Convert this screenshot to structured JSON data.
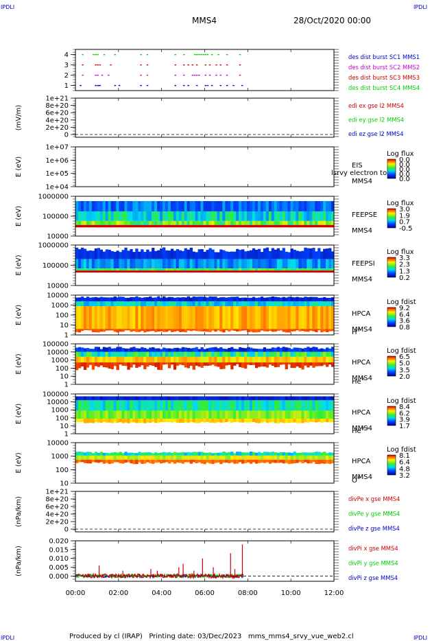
{
  "header": {
    "corner_left_top": "IPDLI",
    "corner_right_top": "IPDLI",
    "corner_left_bottom": "IPDLI",
    "corner_right_bottom": "IPDLI",
    "title": "MMS4",
    "date": "28/Oct/2020 00:00"
  },
  "footer": {
    "text": "Produced by cl (IRAP)   Printing date: 03/Dec/2023   mms_mms4_srvy_vue_web2.cl"
  },
  "colors": {
    "blue": "#0000cc",
    "magenta": "#cc00cc",
    "red": "#cc0000",
    "green": "#00cc00"
  },
  "x_axis": {
    "range_hours": [
      0,
      12
    ],
    "tick_labels": [
      "00:00",
      "02:00",
      "04:00",
      "06:00",
      "08:00",
      "10:00",
      "12:00"
    ]
  },
  "chart_data": [
    {
      "id": "dist",
      "type": "scatter",
      "ylabel": "",
      "ylim": [
        0.5,
        4.5
      ],
      "yticks": [
        "1",
        "2",
        "3",
        "4"
      ],
      "series": [
        {
          "name": "des dist burst SC1 MMS1",
          "color": "#0000cc",
          "y": 1,
          "x": [
            0.2,
            0.9,
            1.0,
            1.05,
            1.1,
            1.8,
            2.0,
            3.0,
            3.3,
            4.6,
            5.0,
            5.2,
            5.6,
            6.0,
            6.1,
            6.3,
            6.7,
            7.0,
            7.3,
            7.7
          ]
        },
        {
          "name": "des dist burst SC2 MMS2",
          "color": "#cc00cc",
          "y": 2,
          "x": [
            0.3,
            0.9,
            1.0,
            1.2,
            1.5,
            3.0,
            3.3,
            4.6,
            5.0,
            5.4,
            5.5,
            5.6,
            5.7,
            6.0,
            6.2,
            6.5,
            6.7,
            7.0,
            7.6
          ]
        },
        {
          "name": "des dist burst SC3 MMS3",
          "color": "#cc0000",
          "y": 3,
          "x": [
            0.3,
            0.9,
            1.0,
            1.1,
            1.6,
            3.0,
            3.3,
            4.6,
            5.0,
            5.2,
            5.4,
            5.6,
            6.0,
            6.2,
            6.5,
            6.7,
            7.0,
            7.6
          ]
        },
        {
          "name": "des dist burst SC4 MMS4",
          "color": "#00cc00",
          "y": 4,
          "x": [
            0.3,
            0.8,
            0.9,
            1.0,
            1.3,
            1.8,
            3.0,
            3.3,
            4.6,
            5.0,
            5.5,
            5.6,
            5.7,
            5.8,
            5.9,
            6.0,
            6.1,
            6.3,
            6.6,
            7.0,
            7.6
          ]
        }
      ]
    },
    {
      "id": "edi",
      "type": "line",
      "ylabel": "(mV/m)",
      "yticks": [
        "1e+21",
        "8e+20",
        "6e+20",
        "4e+20",
        "2e+20",
        "0"
      ],
      "series": [
        {
          "name": "edi ex gse l2 MMS4",
          "color": "#cc0000"
        },
        {
          "name": "edi ey gse l2 MMS4",
          "color": "#00cc00"
        },
        {
          "name": "edi ez gse l2 MMS4",
          "color": "#0000cc"
        }
      ]
    },
    {
      "id": "eis",
      "type": "heatmap",
      "ylabel": "E (eV)",
      "yticks": [
        "1e+07",
        "1e+06",
        "1e+05",
        "1e+04"
      ],
      "labels": [
        "EIS",
        "MMS4"
      ],
      "overlay_text": "lsrvy electron to",
      "colorbar_title": "Log flux",
      "colorbar_ticks": [
        "0.0",
        "0.0",
        "0.0",
        "0.0",
        "0.0"
      ]
    },
    {
      "id": "feepse",
      "type": "heatmap",
      "ylabel": "E (eV)",
      "yticks": [
        "1000000",
        "100000",
        "10000"
      ],
      "labels": [
        "FEEPSE",
        "MMS4"
      ],
      "colorbar_title": "Log flux",
      "colorbar_ticks": [
        "3.0",
        "1.9",
        "0.7",
        "-0.5"
      ]
    },
    {
      "id": "feepsi",
      "type": "heatmap",
      "ylabel": "E (eV)",
      "yticks": [
        "1000000",
        "100000",
        "10000"
      ],
      "labels": [
        "FEEPSI",
        "MMS4"
      ],
      "colorbar_title": "Log flux",
      "colorbar_ticks": [
        "3.3",
        "2.3",
        "1.3",
        "0.2"
      ]
    },
    {
      "id": "hpca_h",
      "type": "heatmap",
      "ylabel": "E (eV)",
      "yticks": [
        "10000",
        "1000",
        "100",
        "10",
        "1"
      ],
      "labels": [
        "HPCA",
        "MMS4"
      ],
      "species": "H",
      "species_sup": "+",
      "colorbar_title": "Log fdist",
      "colorbar_ticks": [
        "9.2",
        "6.4",
        "3.6",
        "0.8"
      ]
    },
    {
      "id": "hpca_he",
      "type": "heatmap",
      "ylabel": "E (eV)",
      "yticks": [
        "100000",
        "10000",
        "1000",
        "100",
        "10",
        "1"
      ],
      "labels": [
        "HPCA",
        "MMS4"
      ],
      "species": "He",
      "species_sup": "+",
      "colorbar_title": "Log fdist",
      "colorbar_ticks": [
        "6.5",
        "5.0",
        "3.5",
        "2.0"
      ]
    },
    {
      "id": "hpca_hepp",
      "type": "heatmap",
      "ylabel": "E (eV)",
      "yticks": [
        "100000",
        "10000",
        "1000",
        "100",
        "10",
        "1"
      ],
      "labels": [
        "HPCA",
        "MMS4"
      ],
      "species": "He",
      "species_sup": "++",
      "colorbar_title": "Log fdist",
      "colorbar_ticks": [
        "8.4",
        "6.2",
        "3.9",
        "1.7"
      ]
    },
    {
      "id": "hpca_o",
      "type": "heatmap",
      "ylabel": "E (eV)",
      "yticks": [
        "10000",
        "1000",
        "100",
        "10"
      ],
      "labels": [
        "HPCA",
        "MMS4"
      ],
      "species": "O",
      "species_sup": "+",
      "colorbar_title": "Log fdist",
      "colorbar_ticks": [
        "8.1",
        "6.4",
        "4.8",
        "3.2"
      ]
    },
    {
      "id": "divpe",
      "type": "line",
      "ylabel": "(nPa/km)",
      "yticks": [
        "1e+21",
        "8e+20",
        "6e+20",
        "4e+20",
        "2e+20",
        "0"
      ],
      "series": [
        {
          "name": "divPe x gse MMS4",
          "color": "#cc0000"
        },
        {
          "name": "divPe y gse MMS4",
          "color": "#00cc00"
        },
        {
          "name": "divPe z gse MMS4",
          "color": "#0000cc"
        }
      ]
    },
    {
      "id": "divpi",
      "type": "line",
      "ylabel": "(nPa/km)",
      "ylim": [
        -0.003,
        0.02
      ],
      "yticks": [
        "0.020",
        "0.015",
        "0.010",
        "0.005",
        "0.000"
      ],
      "data_end_hour": 7.8,
      "spikes": [
        [
          1.1,
          0.006
        ],
        [
          2.2,
          0.003
        ],
        [
          3.5,
          0.004
        ],
        [
          3.8,
          0.003
        ],
        [
          4.8,
          0.005
        ],
        [
          5.0,
          0.007
        ],
        [
          5.5,
          0.003
        ],
        [
          5.9,
          0.01
        ],
        [
          6.4,
          0.005
        ],
        [
          7.2,
          0.013
        ],
        [
          7.4,
          0.004
        ],
        [
          7.75,
          0.018
        ]
      ],
      "series": [
        {
          "name": "divPi x gse MMS4",
          "color": "#cc0000"
        },
        {
          "name": "divPi y gse MMS4",
          "color": "#00cc00"
        },
        {
          "name": "divPi z gse MMS4",
          "color": "#0000cc"
        }
      ]
    }
  ]
}
